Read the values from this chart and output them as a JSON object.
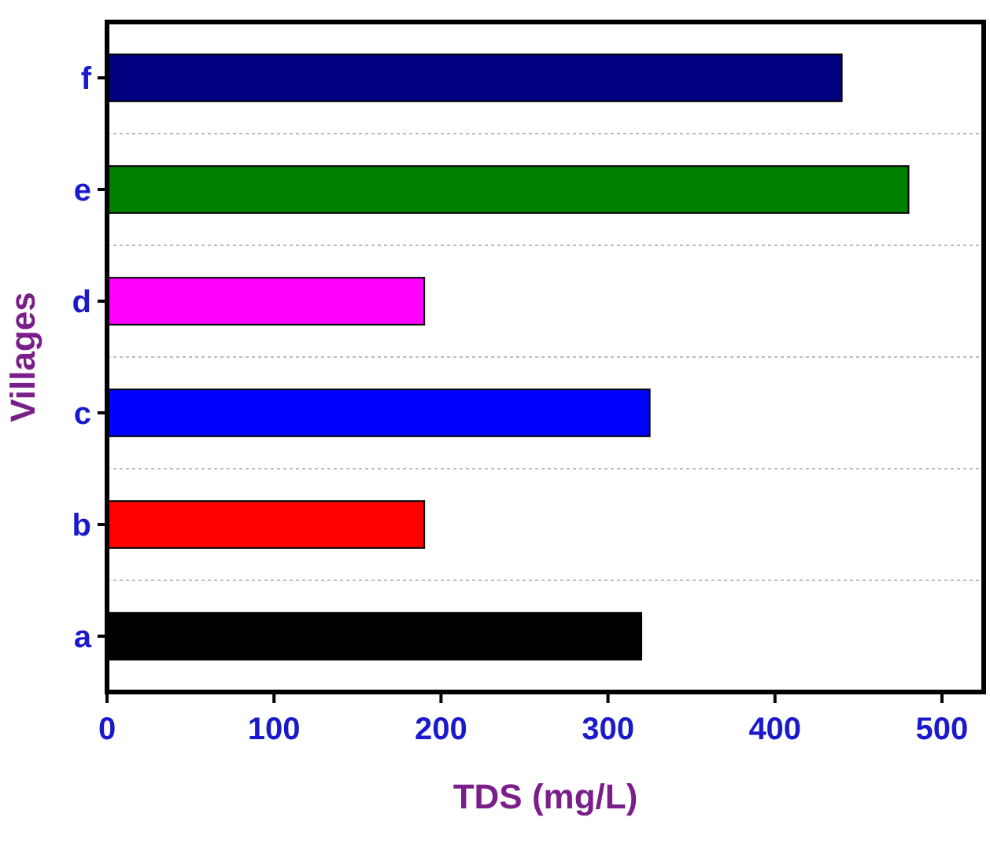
{
  "chart_data": {
    "type": "bar",
    "orientation": "horizontal",
    "xlabel": "TDS (mg/L)",
    "ylabel": "Villages",
    "categories": [
      "f",
      "e",
      "d",
      "c",
      "b",
      "a"
    ],
    "values": [
      440,
      480,
      190,
      325,
      190,
      320
    ],
    "colors": [
      "#000080",
      "#008000",
      "#ff00ff",
      "#0000ff",
      "#ff0000",
      "#000000"
    ],
    "xlim": [
      0,
      525
    ],
    "xticks": [
      0,
      100,
      200,
      300,
      400,
      500
    ],
    "grid": "y"
  }
}
